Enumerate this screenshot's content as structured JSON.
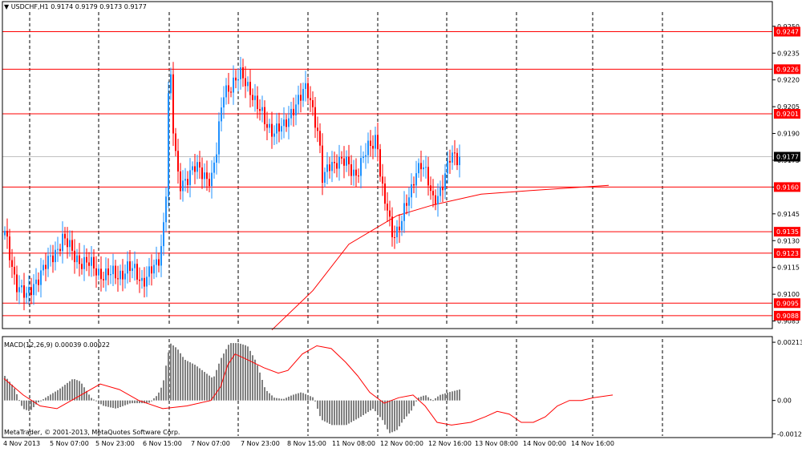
{
  "header": {
    "symbol": "USDCHF,H1",
    "ohlc": "0.9174 0.9179 0.9173 0.9177"
  },
  "macd_label": "MACD(12,26,9) 0.00039 0.00022",
  "copyright": "MetaTrader, © 2001-2013, MetaQuotes Software Corp.",
  "colors": {
    "bull": "#1e90ff",
    "bear": "#ff0000",
    "hline": "#ff0000",
    "ma": "#ff0000",
    "histogram": "#808080",
    "signal": "#ff0000",
    "grid": "#000000"
  },
  "chart_data": {
    "type": "candlestick",
    "symbol": "USDCHF",
    "timeframe": "H1",
    "price_axis": {
      "ticks": [
        "0.9250",
        "0.9235",
        "0.9220",
        "0.9205",
        "0.9190",
        "0.9175",
        "0.9160",
        "0.9145",
        "0.9130",
        "0.9115",
        "0.9100",
        "0.9085"
      ],
      "range": [
        0.9083,
        0.9258
      ]
    },
    "current_price": 0.9177,
    "current_price_label": "0.9177",
    "horizontal_lines": [
      {
        "price": 0.9247,
        "label": "0.9247"
      },
      {
        "price": 0.9226,
        "label": "0.9226"
      },
      {
        "price": 0.9201,
        "label": "0.9201"
      },
      {
        "price": 0.916,
        "label": "0.9160"
      },
      {
        "price": 0.9135,
        "label": "0.9135"
      },
      {
        "price": 0.9123,
        "label": "0.9123"
      },
      {
        "price": 0.9095,
        "label": "0.9095"
      },
      {
        "price": 0.9088,
        "label": "0.9088"
      }
    ],
    "time_axis": [
      "4 Nov 2013",
      "5 Nov 07:00",
      "5 Nov 23:00",
      "6 Nov 15:00",
      "7 Nov 07:00",
      "7 Nov 23:00",
      "8 Nov 15:00",
      "11 Nov 08:00",
      "12 Nov 00:00",
      "12 Nov 16:00",
      "13 Nov 08:00",
      "14 Nov 00:00",
      "14 Nov 16:00"
    ],
    "candle_count": 190,
    "path": [
      [
        0,
        0.9133
      ],
      [
        6,
        0.9108
      ],
      [
        12,
        0.9097
      ],
      [
        18,
        0.911
      ],
      [
        25,
        0.9118
      ],
      [
        32,
        0.9132
      ],
      [
        38,
        0.9122
      ],
      [
        44,
        0.9118
      ],
      [
        50,
        0.9114
      ],
      [
        56,
        0.9111
      ],
      [
        62,
        0.911
      ],
      [
        68,
        0.9115
      ],
      [
        72,
        0.9112
      ],
      [
        76,
        0.9108
      ],
      [
        80,
        0.9112
      ],
      [
        84,
        0.9114
      ],
      [
        86,
        0.912
      ],
      [
        88,
        0.9135
      ],
      [
        90,
        0.9165
      ],
      [
        91,
        0.9212
      ],
      [
        92,
        0.9228
      ],
      [
        94,
        0.9185
      ],
      [
        97,
        0.916
      ],
      [
        100,
        0.9165
      ],
      [
        105,
        0.917
      ],
      [
        110,
        0.9168
      ],
      [
        115,
        0.9165
      ],
      [
        118,
        0.918
      ],
      [
        120,
        0.92
      ],
      [
        122,
        0.9215
      ],
      [
        127,
        0.9218
      ],
      [
        132,
        0.9222
      ],
      [
        137,
        0.9215
      ],
      [
        140,
        0.9205
      ],
      [
        145,
        0.9196
      ],
      [
        150,
        0.9192
      ],
      [
        155,
        0.9192
      ],
      [
        160,
        0.9205
      ],
      [
        165,
        0.921
      ],
      [
        168,
        0.9215
      ],
      [
        172,
        0.9203
      ],
      [
        175,
        0.9185
      ],
      [
        177,
        0.916
      ],
      [
        180,
        0.9172
      ],
      [
        185,
        0.9176
      ],
      [
        190,
        0.9172
      ],
      [
        195,
        0.9168
      ],
      [
        200,
        0.9177
      ],
      [
        205,
        0.9185
      ],
      [
        207,
        0.919
      ],
      [
        209,
        0.9168
      ],
      [
        211,
        0.9152
      ],
      [
        213,
        0.9146
      ],
      [
        215,
        0.9132
      ],
      [
        218,
        0.9136
      ],
      [
        222,
        0.9147
      ],
      [
        226,
        0.9155
      ],
      [
        229,
        0.917
      ],
      [
        232,
        0.9176
      ],
      [
        235,
        0.9165
      ],
      [
        238,
        0.915
      ],
      [
        241,
        0.9156
      ],
      [
        245,
        0.9168
      ],
      [
        248,
        0.9176
      ],
      [
        251,
        0.9175
      ],
      [
        253,
        0.9177
      ]
    ],
    "ma_points": [
      [
        113,
        0.908
      ],
      [
        130,
        0.9102
      ],
      [
        145,
        0.9128
      ],
      [
        165,
        0.9144
      ],
      [
        180,
        0.915
      ],
      [
        200,
        0.9156
      ],
      [
        220,
        0.9158
      ],
      [
        253,
        0.9161
      ]
    ],
    "macd": {
      "label": "MACD(12,26,9)",
      "main_value": 0.00039,
      "signal_value": 0.00022,
      "axis_ticks": [
        "0.00213",
        "0.00",
        "-0.00122"
      ],
      "range": [
        -0.0013,
        0.00225
      ],
      "histogram_path": [
        [
          0,
          0.0009
        ],
        [
          5,
          0.0005
        ],
        [
          10,
          -0.0003
        ],
        [
          14,
          -0.0004
        ],
        [
          18,
          -0.0001
        ],
        [
          25,
          0.0002
        ],
        [
          30,
          0.0004
        ],
        [
          38,
          0.0008
        ],
        [
          42,
          0.0007
        ],
        [
          48,
          0.0001
        ],
        [
          55,
          -0.0002
        ],
        [
          62,
          -0.0003
        ],
        [
          70,
          -0.0001
        ],
        [
          80,
          -0.0001
        ],
        [
          85,
          0.0002
        ],
        [
          88,
          0.0006
        ],
        [
          90,
          0.0014
        ],
        [
          92,
          0.0021
        ],
        [
          96,
          0.0019
        ],
        [
          100,
          0.0015
        ],
        [
          106,
          0.0013
        ],
        [
          112,
          0.001
        ],
        [
          116,
          0.0008
        ],
        [
          120,
          0.0015
        ],
        [
          125,
          0.0021
        ],
        [
          130,
          0.0021
        ],
        [
          135,
          0.002
        ],
        [
          140,
          0.0014
        ],
        [
          145,
          0.0004
        ],
        [
          150,
          0.0001
        ],
        [
          155,
          5e-05
        ],
        [
          160,
          0.0002
        ],
        [
          165,
          0.0003
        ],
        [
          172,
          0.0001
        ],
        [
          176,
          -0.0007
        ],
        [
          182,
          -0.0009
        ],
        [
          190,
          -0.0009
        ],
        [
          198,
          -0.0006
        ],
        [
          205,
          -0.0003
        ],
        [
          210,
          -0.0007
        ],
        [
          214,
          -0.0012
        ],
        [
          218,
          -0.0011
        ],
        [
          222,
          -0.0007
        ],
        [
          226,
          -0.0004
        ],
        [
          230,
          0.0001
        ],
        [
          234,
          0.0002
        ],
        [
          238,
          0.0
        ],
        [
          242,
          0.0002
        ],
        [
          247,
          0.0003
        ],
        [
          253,
          0.0004
        ]
      ],
      "signal_path": [
        [
          0,
          0.0008
        ],
        [
          8,
          0.0002
        ],
        [
          15,
          -0.0002
        ],
        [
          22,
          -0.0003
        ],
        [
          30,
          0.0001
        ],
        [
          40,
          0.0006
        ],
        [
          48,
          0.0004
        ],
        [
          56,
          0.0
        ],
        [
          66,
          -0.0003
        ],
        [
          76,
          -0.0002
        ],
        [
          86,
          0.0
        ],
        [
          90,
          0.0005
        ],
        [
          93,
          0.0013
        ],
        [
          96,
          0.0017
        ],
        [
          101,
          0.0015
        ],
        [
          108,
          0.0012
        ],
        [
          114,
          0.001
        ],
        [
          118,
          0.0011
        ],
        [
          124,
          0.0017
        ],
        [
          130,
          0.002
        ],
        [
          136,
          0.0019
        ],
        [
          142,
          0.0014
        ],
        [
          147,
          0.0009
        ],
        [
          152,
          0.0003
        ],
        [
          158,
          -0.0001
        ],
        [
          164,
          0.0001
        ],
        [
          170,
          0.0002
        ],
        [
          175,
          -0.0002
        ],
        [
          180,
          -0.0008
        ],
        [
          186,
          -0.0009
        ],
        [
          194,
          -0.0008
        ],
        [
          200,
          -0.0006
        ],
        [
          205,
          -0.0004
        ],
        [
          210,
          -0.0005
        ],
        [
          215,
          -0.0008
        ],
        [
          220,
          -0.0008
        ],
        [
          225,
          -0.0006
        ],
        [
          230,
          -0.0002
        ],
        [
          235,
          0.0
        ],
        [
          240,
          0.0
        ],
        [
          245,
          0.0001
        ],
        [
          253,
          0.0002
        ]
      ]
    }
  }
}
